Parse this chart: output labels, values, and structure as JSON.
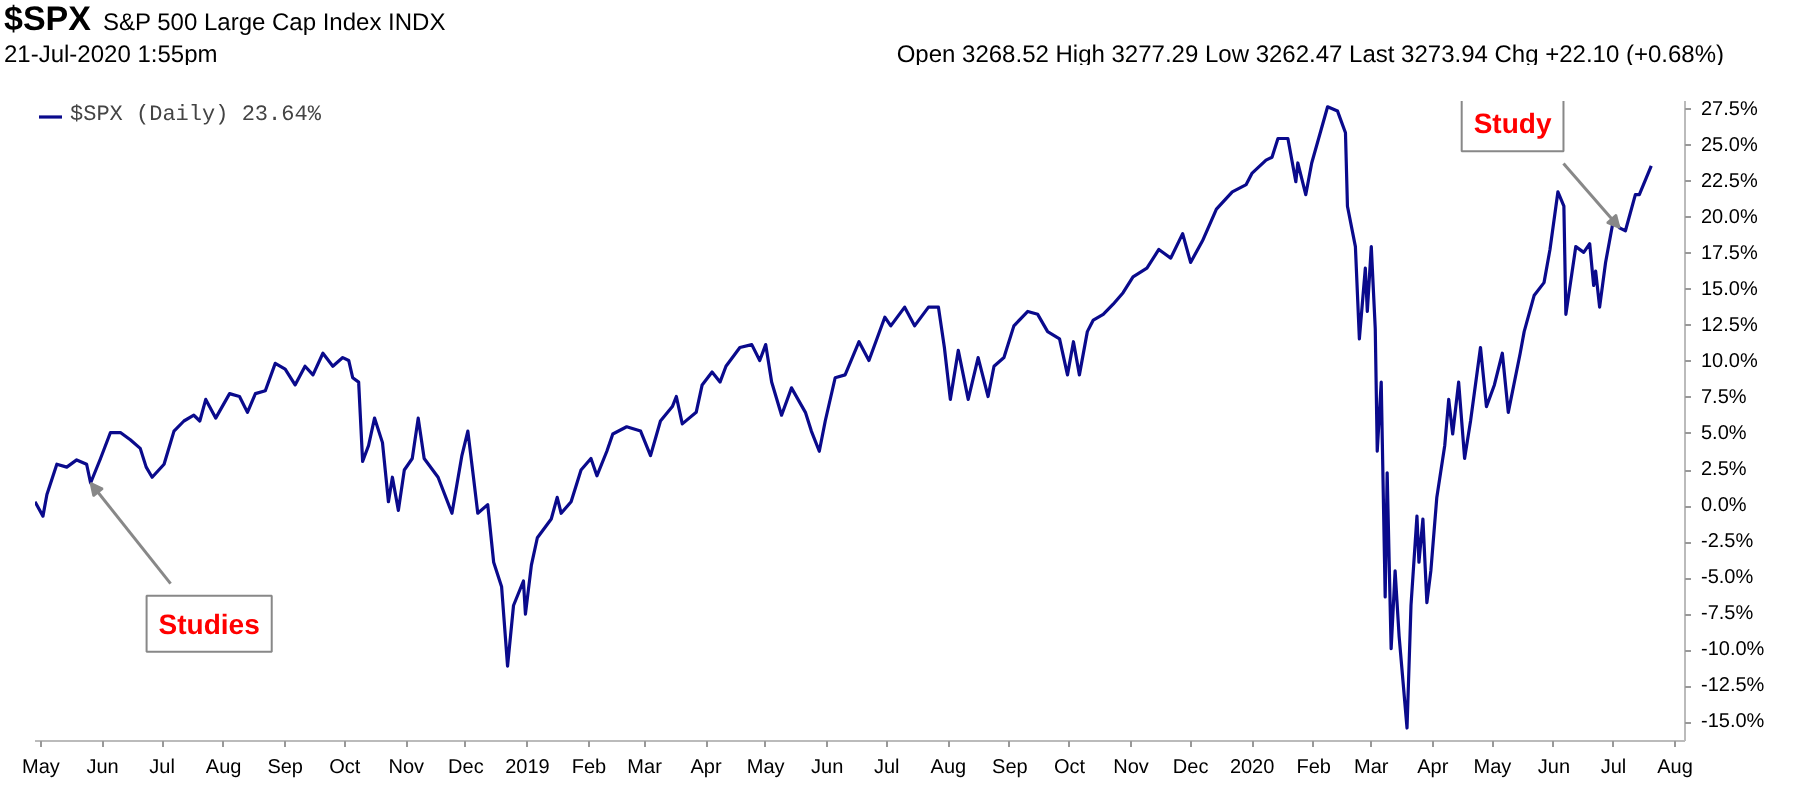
{
  "chart_data": {
    "type": "line",
    "title": "$SPX",
    "subtitle": "S&P 500 Large Cap Index INDX",
    "annotations": [
      "21-Jul-2020 1:55pm",
      "Open 3268.52  High 3277.29  Low 3262.47  Last 3273.94  Chg +22.10 (+0.68%)",
      {
        "text": "Studies",
        "x": "2018-05-26",
        "y": 1.6
      },
      {
        "text": "Study",
        "x": "2020-07-04",
        "y": 19.3
      }
    ],
    "legend": "top left",
    "grid": false,
    "line_style": "solid",
    "marker": "none",
    "xlim": [
      "2018-04-28",
      "2020-08-06"
    ],
    "xticks": [
      {
        "value": "2018-05-01",
        "label": "May"
      },
      {
        "value": "2018-06-01",
        "label": "Jun"
      },
      {
        "value": "2018-07-01",
        "label": "Jul"
      },
      {
        "value": "2018-08-01",
        "label": "Aug"
      },
      {
        "value": "2018-09-01",
        "label": "Sep"
      },
      {
        "value": "2018-10-01",
        "label": "Oct"
      },
      {
        "value": "2018-11-01",
        "label": "Nov"
      },
      {
        "value": "2018-12-01",
        "label": "Dec"
      },
      {
        "value": "2019-01-01",
        "label": "2019"
      },
      {
        "value": "2019-02-01",
        "label": "Feb"
      },
      {
        "value": "2019-03-01",
        "label": "Mar"
      },
      {
        "value": "2019-04-01",
        "label": "Apr"
      },
      {
        "value": "2019-05-01",
        "label": "May"
      },
      {
        "value": "2019-06-01",
        "label": "Jun"
      },
      {
        "value": "2019-07-01",
        "label": "Jul"
      },
      {
        "value": "2019-08-01",
        "label": "Aug"
      },
      {
        "value": "2019-09-01",
        "label": "Sep"
      },
      {
        "value": "2019-10-01",
        "label": "Oct"
      },
      {
        "value": "2019-11-01",
        "label": "Nov"
      },
      {
        "value": "2019-12-01",
        "label": "Dec"
      },
      {
        "value": "2020-01-01",
        "label": "2020"
      },
      {
        "value": "2020-02-01",
        "label": "Feb"
      },
      {
        "value": "2020-03-01",
        "label": "Mar"
      },
      {
        "value": "2020-04-01",
        "label": "Apr"
      },
      {
        "value": "2020-05-01",
        "label": "May"
      },
      {
        "value": "2020-06-01",
        "label": "Jun"
      },
      {
        "value": "2020-07-01",
        "label": "Jul"
      },
      {
        "value": "2020-08-01",
        "label": "Aug"
      }
    ],
    "ylim": [
      -16.3,
      28.1
    ],
    "yticks": [
      {
        "value": -15,
        "label": "-15.0%"
      },
      {
        "value": -12.5,
        "label": "-12.5%"
      },
      {
        "value": -10,
        "label": "-10.0%"
      },
      {
        "value": -7.5,
        "label": "-7.5%"
      },
      {
        "value": -5,
        "label": "-5.0%"
      },
      {
        "value": -2.5,
        "label": "-2.5%"
      },
      {
        "value": 0,
        "label": "0.0%"
      },
      {
        "value": 2.5,
        "label": "2.5%"
      },
      {
        "value": 5,
        "label": "5.0%"
      },
      {
        "value": 7.5,
        "label": "7.5%"
      },
      {
        "value": 10,
        "label": "10.0%"
      },
      {
        "value": 12.5,
        "label": "12.5%"
      },
      {
        "value": 15,
        "label": "15.0%"
      },
      {
        "value": 17.5,
        "label": "17.5%"
      },
      {
        "value": 20,
        "label": "20.0%"
      },
      {
        "value": 22.5,
        "label": "22.5%"
      },
      {
        "value": 25,
        "label": "25.0%"
      },
      {
        "value": 27.5,
        "label": "27.5%"
      }
    ],
    "series": [
      {
        "name": "$SPX (Daily) 23.64%",
        "color": "#0a0a8c",
        "x": [
          "2018-04-28",
          "2018-05-02",
          "2018-05-04",
          "2018-05-09",
          "2018-05-14",
          "2018-05-19",
          "2018-05-24",
          "2018-05-26",
          "2018-05-31",
          "2018-06-05",
          "2018-06-10",
          "2018-06-15",
          "2018-06-20",
          "2018-06-23",
          "2018-06-26",
          "2018-07-02",
          "2018-07-07",
          "2018-07-12",
          "2018-07-17",
          "2018-07-20",
          "2018-07-23",
          "2018-07-28",
          "2018-08-04",
          "2018-08-09",
          "2018-08-13",
          "2018-08-17",
          "2018-08-22",
          "2018-08-27",
          "2018-09-01",
          "2018-09-06",
          "2018-09-11",
          "2018-09-15",
          "2018-09-20",
          "2018-09-25",
          "2018-09-30",
          "2018-10-03",
          "2018-10-05",
          "2018-10-08",
          "2018-10-10",
          "2018-10-13",
          "2018-10-16",
          "2018-10-20",
          "2018-10-23",
          "2018-10-25",
          "2018-10-28",
          "2018-10-31",
          "2018-11-04",
          "2018-11-07",
          "2018-11-10",
          "2018-11-17",
          "2018-11-24",
          "2018-11-29",
          "2018-12-02",
          "2018-12-05",
          "2018-12-07",
          "2018-12-12",
          "2018-12-15",
          "2018-12-19",
          "2018-12-22",
          "2018-12-25",
          "2018-12-30",
          "2018-12-31",
          "2019-01-03",
          "2019-01-06",
          "2019-01-13",
          "2019-01-16",
          "2019-01-18",
          "2019-01-23",
          "2019-01-28",
          "2019-02-02",
          "2019-02-05",
          "2019-02-10",
          "2019-02-13",
          "2019-02-20",
          "2019-02-27",
          "2019-03-04",
          "2019-03-09",
          "2019-03-15",
          "2019-03-17",
          "2019-03-20",
          "2019-03-27",
          "2019-03-30",
          "2019-04-04",
          "2019-04-08",
          "2019-04-11",
          "2019-04-18",
          "2019-04-24",
          "2019-04-28",
          "2019-05-01",
          "2019-05-04",
          "2019-05-09",
          "2019-05-14",
          "2019-05-21",
          "2019-05-24",
          "2019-05-28",
          "2019-05-31",
          "2019-06-05",
          "2019-06-10",
          "2019-06-17",
          "2019-06-22",
          "2019-06-30",
          "2019-07-03",
          "2019-07-10",
          "2019-07-15",
          "2019-07-22",
          "2019-07-27",
          "2019-07-30",
          "2019-08-02",
          "2019-08-06",
          "2019-08-11",
          "2019-08-16",
          "2019-08-21",
          "2019-08-24",
          "2019-08-29",
          "2019-09-03",
          "2019-09-10",
          "2019-09-15",
          "2019-09-20",
          "2019-09-26",
          "2019-09-30",
          "2019-10-03",
          "2019-10-06",
          "2019-10-10",
          "2019-10-13",
          "2019-10-18",
          "2019-10-23",
          "2019-10-28",
          "2019-11-02",
          "2019-11-09",
          "2019-11-15",
          "2019-11-21",
          "2019-11-27",
          "2019-12-01",
          "2019-12-07",
          "2019-12-14",
          "2019-12-22",
          "2019-12-29",
          "2020-01-01",
          "2020-01-08",
          "2020-01-11",
          "2020-01-14",
          "2020-01-19",
          "2020-01-23",
          "2020-01-24",
          "2020-01-28",
          "2020-01-31",
          "2020-02-08",
          "2020-02-13",
          "2020-02-17",
          "2020-02-18",
          "2020-02-22",
          "2020-02-24",
          "2020-02-27",
          "2020-02-28",
          "2020-03-01",
          "2020-03-03",
          "2020-03-04",
          "2020-03-06",
          "2020-03-08",
          "2020-03-09",
          "2020-03-11",
          "2020-03-13",
          "2020-03-15",
          "2020-03-19",
          "2020-03-21",
          "2020-03-24",
          "2020-03-25",
          "2020-03-27",
          "2020-03-29",
          "2020-03-31",
          "2020-04-03",
          "2020-04-07",
          "2020-04-09",
          "2020-04-11",
          "2020-04-14",
          "2020-04-17",
          "2020-04-20",
          "2020-04-25",
          "2020-04-28",
          "2020-05-02",
          "2020-05-06",
          "2020-05-09",
          "2020-05-15",
          "2020-05-17",
          "2020-05-22",
          "2020-05-27",
          "2020-05-30",
          "2020-06-03",
          "2020-06-06",
          "2020-06-07",
          "2020-06-12",
          "2020-06-16",
          "2020-06-19",
          "2020-06-21",
          "2020-06-22",
          "2020-06-24",
          "2020-06-27",
          "2020-07-01",
          "2020-07-04",
          "2020-07-07",
          "2020-07-12",
          "2020-07-14",
          "2020-07-20"
        ],
        "values": [
          0.3,
          -0.7,
          0.8,
          2.9,
          2.7,
          3.2,
          2.9,
          1.6,
          3.3,
          5.1,
          5.1,
          4.6,
          4.0,
          2.7,
          2.0,
          2.9,
          5.2,
          5.9,
          6.3,
          5.9,
          7.4,
          6.1,
          7.8,
          7.6,
          6.5,
          7.8,
          8.0,
          9.9,
          9.5,
          8.4,
          9.7,
          9.1,
          10.6,
          9.7,
          10.3,
          10.1,
          8.9,
          8.6,
          3.1,
          4.2,
          6.1,
          4.4,
          0.3,
          2.0,
          -0.3,
          2.5,
          3.3,
          6.1,
          3.3,
          2.0,
          -0.5,
          3.5,
          5.2,
          1.8,
          -0.5,
          0.1,
          -3.9,
          -5.6,
          -11.1,
          -6.9,
          -5.2,
          -7.5,
          -4.1,
          -2.2,
          -0.9,
          0.6,
          -0.5,
          0.3,
          2.5,
          3.3,
          2.1,
          3.8,
          5.0,
          5.5,
          5.2,
          3.5,
          5.9,
          6.9,
          7.6,
          5.7,
          6.5,
          8.4,
          9.3,
          8.6,
          9.7,
          11.0,
          11.2,
          10.1,
          11.2,
          8.6,
          6.3,
          8.2,
          6.5,
          5.2,
          3.8,
          5.9,
          8.9,
          9.1,
          11.4,
          10.1,
          13.1,
          12.5,
          13.8,
          12.5,
          13.8,
          13.8,
          11.0,
          7.4,
          10.8,
          7.4,
          10.3,
          7.6,
          9.7,
          10.3,
          12.5,
          13.5,
          13.3,
          12.1,
          11.6,
          9.1,
          11.4,
          9.1,
          12.1,
          12.9,
          13.3,
          14.0,
          14.8,
          15.9,
          16.5,
          17.8,
          17.2,
          18.9,
          16.9,
          18.4,
          20.6,
          21.8,
          22.3,
          23.1,
          24.0,
          24.2,
          25.5,
          25.5,
          22.5,
          23.8,
          21.6,
          23.8,
          27.7,
          27.4,
          25.9,
          20.8,
          18.0,
          11.6,
          16.5,
          13.5,
          18.0,
          12.3,
          3.8,
          8.6,
          -6.3,
          2.3,
          -9.9,
          -4.5,
          -9.0,
          -15.4,
          -6.9,
          -0.7,
          -3.9,
          -0.9,
          -6.7,
          -4.5,
          0.6,
          4.2,
          7.4,
          5.0,
          8.6,
          3.3,
          5.9,
          11.0,
          6.9,
          8.4,
          10.6,
          6.5,
          10.6,
          12.1,
          14.6,
          15.5,
          17.8,
          21.8,
          20.8,
          13.3,
          18.0,
          17.6,
          18.2,
          15.3,
          16.3,
          13.8,
          16.9,
          19.9,
          19.3,
          19.1,
          21.6,
          21.6,
          23.6
        ]
      }
    ]
  }
}
